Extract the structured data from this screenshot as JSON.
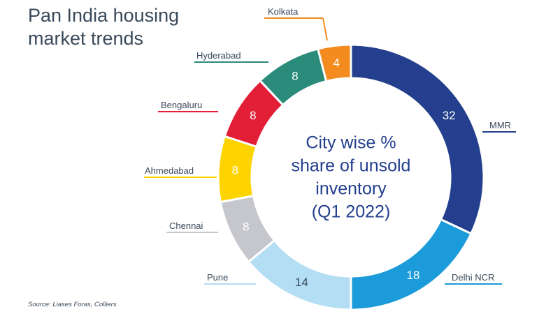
{
  "title": "Pan India housing market trends",
  "source": "Source: Liases Foras, Colliers",
  "chart_data": {
    "type": "pie",
    "variant": "donut",
    "center_text": [
      "City wise %",
      "share of unsold",
      "inventory",
      "(Q1 2022)"
    ],
    "slices": [
      {
        "label": "MMR",
        "value": 32,
        "color": "#233f8d"
      },
      {
        "label": "Delhi NCR",
        "value": 18,
        "color": "#1b9bd9"
      },
      {
        "label": "Pune",
        "value": 14,
        "color": "#b3def4"
      },
      {
        "label": "Chennai",
        "value": 8,
        "color": "#c6c7cd"
      },
      {
        "label": "Ahmedabad",
        "value": 8,
        "color": "#fed400"
      },
      {
        "label": "Bengaluru",
        "value": 8,
        "color": "#e31e37"
      },
      {
        "label": "Hyderabad",
        "value": 8,
        "color": "#2a8b7b"
      },
      {
        "label": "Kolkata",
        "value": 4,
        "color": "#f48b1f"
      }
    ]
  }
}
